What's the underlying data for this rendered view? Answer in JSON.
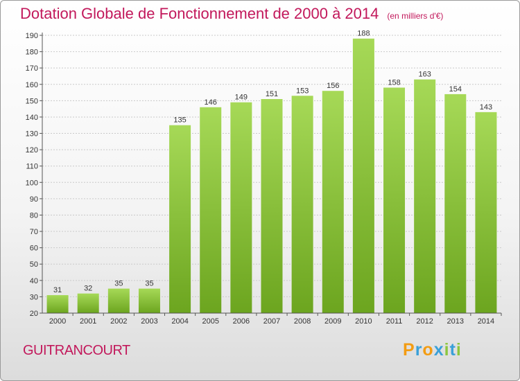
{
  "header": {
    "title": "Dotation Globale de Fonctionnement de 2000 à 2014",
    "unit": "(en milliers d'€)"
  },
  "footer": {
    "commune": "GUITRANCOURT",
    "logo": {
      "letters": [
        "P",
        "r",
        "o",
        "x",
        "i",
        "t",
        "i"
      ],
      "colors": [
        "#f39c12",
        "#3aa0d8",
        "#f39c12",
        "#3aa0d8",
        "#8cc63f",
        "#3aa0d8",
        "#8cc63f"
      ]
    }
  },
  "colors": {
    "title": "#c2185b",
    "bar_light": "#a6d957",
    "bar_dark": "#6ca51f",
    "grid": "#c9c9c9",
    "axis": "#555555"
  },
  "chart_data": {
    "type": "bar",
    "title": "Dotation Globale de Fonctionnement de 2000 à 2014",
    "subtitle": "(en milliers d'€)",
    "categories": [
      "2000",
      "2001",
      "2002",
      "2003",
      "2004",
      "2005",
      "2006",
      "2007",
      "2008",
      "2009",
      "2010",
      "2011",
      "2012",
      "2013",
      "2014"
    ],
    "values": [
      31,
      32,
      35,
      35,
      135,
      146,
      149,
      151,
      153,
      156,
      188,
      158,
      163,
      154,
      143
    ],
    "ylim": [
      20,
      190
    ],
    "yticks": [
      20,
      30,
      40,
      50,
      60,
      70,
      80,
      90,
      100,
      110,
      120,
      130,
      140,
      150,
      160,
      170,
      180,
      190
    ],
    "grid": true,
    "data_labels": true
  }
}
